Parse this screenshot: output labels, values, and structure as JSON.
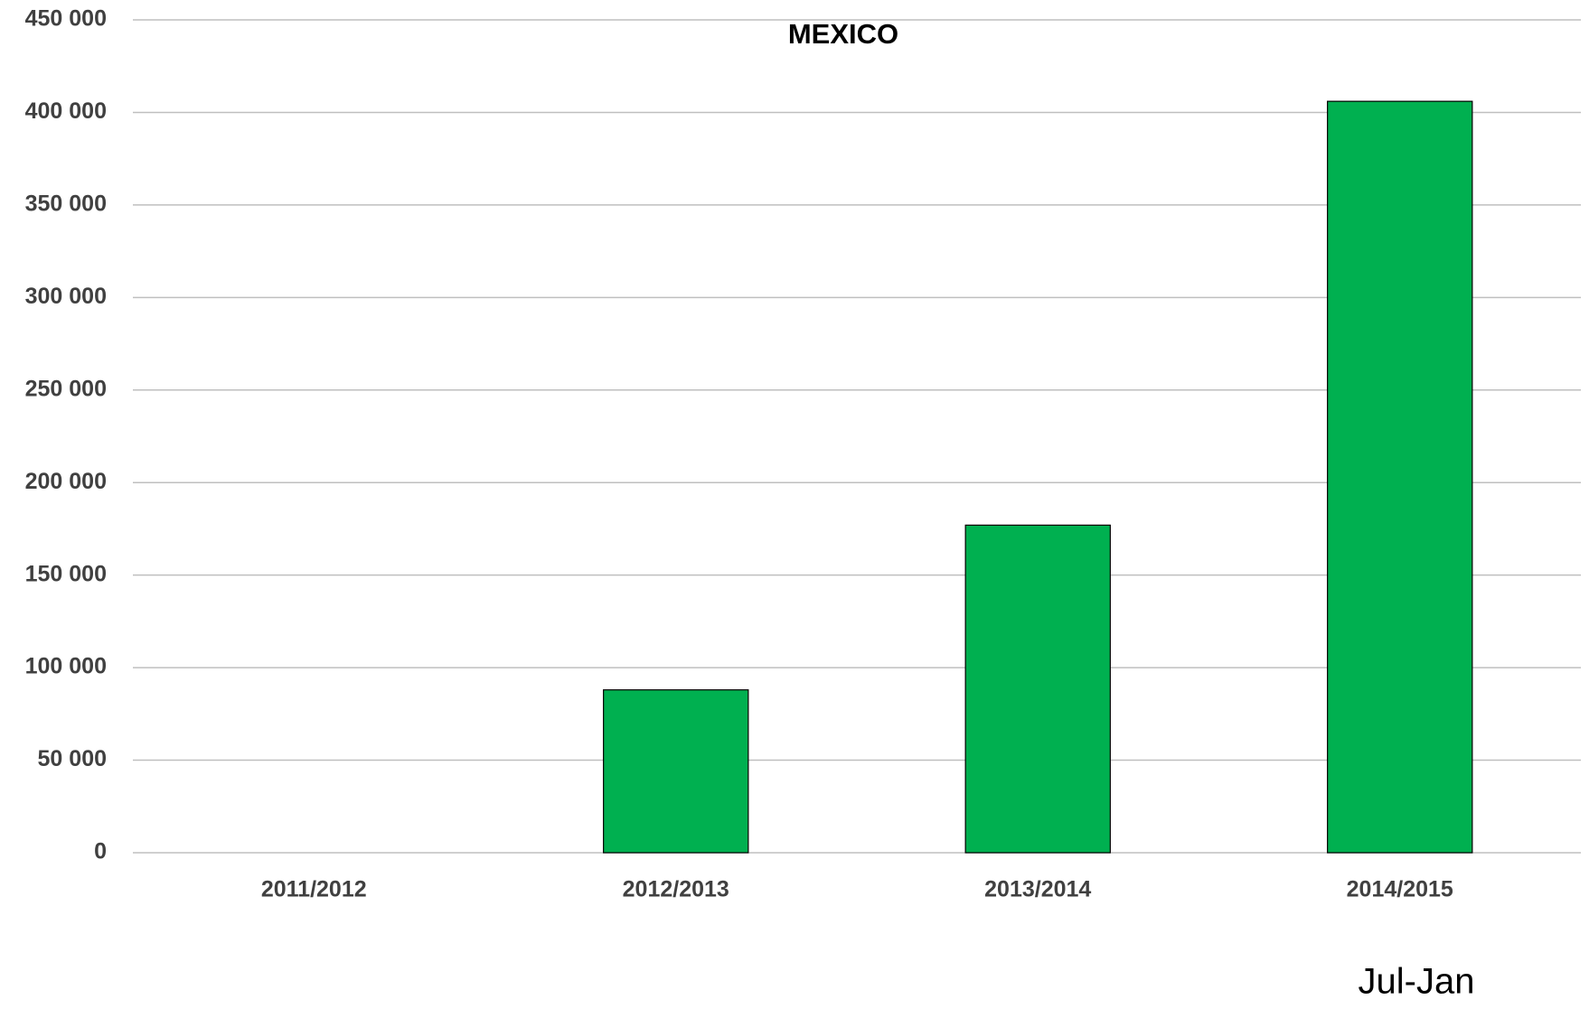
{
  "chart_data": {
    "type": "bar",
    "title": "MEXICO",
    "categories": [
      "2011/2012",
      "2012/2013",
      "2013/2014",
      "2014/2015"
    ],
    "values": [
      0,
      88000,
      177000,
      406000
    ],
    "color": "#00b050",
    "ylim": [
      0,
      450000
    ],
    "yticks": [
      0,
      {
        "value": 50000,
        "label": "50 000"
      },
      {
        "value": 100000,
        "label": "100 000"
      },
      {
        "value": 150000,
        "label": "150 000"
      },
      {
        "value": 200000,
        "label": "200 000"
      },
      {
        "value": 250000,
        "label": "250 000"
      },
      {
        "value": 300000,
        "label": "300 000"
      },
      {
        "value": 350000,
        "label": "350 000"
      },
      {
        "value": 400000,
        "label": "400 000"
      },
      {
        "value": 450000,
        "label": "450 000"
      }
    ],
    "grid": true,
    "annotation": "Jul-Jan"
  }
}
